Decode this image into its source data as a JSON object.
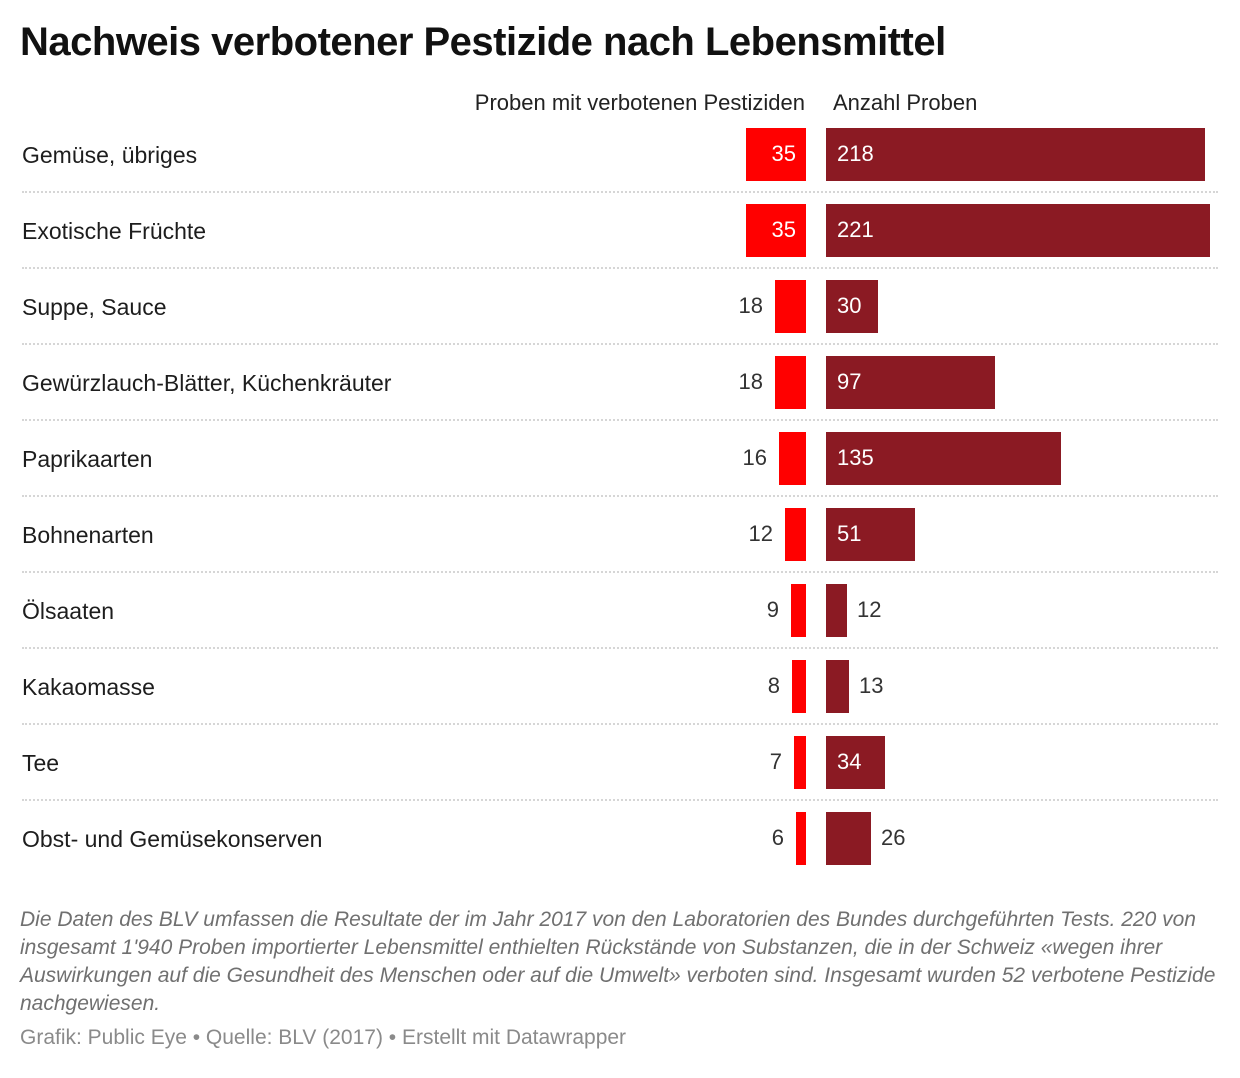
{
  "title": "Nachweis verbotener Pestizide nach Lebensmittel",
  "footnote": "Die Daten des BLV umfassen die Resultate der im Jahr 2017 von den Laboratorien des Bundes durchgeführten Tests. 220 von insgesamt 1'940 Proben importierter Lebensmittel enthielten Rückstände von Substanzen, die in der Schweiz «wegen ihrer Auswirkungen auf die Gesundheit des Menschen oder auf die Umwelt» verboten sind. Insgesamt wurden 52 verbotene Pestizide nachgewiesen.",
  "credits": "Grafik: Public Eye • Quelle: BLV (2017) • Erstellt mit Datawrapper",
  "colors": {
    "forbidden": "#ff0000",
    "samples": "#8b1a23"
  },
  "chart_data": {
    "type": "bar",
    "orientation": "horizontal",
    "title": "Nachweis verbotener Pestizide nach Lebensmittel",
    "categories": [
      "Gemüse, übriges",
      "Exotische Früchte",
      "Suppe, Sauce",
      "Gewürzlauch-Blätter, Küchenkräuter",
      "Paprikaarten",
      "Bohnenarten",
      "Ölsaaten",
      "Kakaomasse",
      "Tee",
      "Obst- und Gemüsekonserven"
    ],
    "series": [
      {
        "name": "Proben mit verbotenen Pestiziden",
        "values": [
          35,
          35,
          18,
          18,
          16,
          12,
          9,
          8,
          7,
          6
        ],
        "xlim": [
          0,
          35
        ]
      },
      {
        "name": "Anzahl Proben",
        "values": [
          218,
          221,
          30,
          97,
          135,
          51,
          12,
          13,
          34,
          26
        ],
        "xlim": [
          0,
          221
        ]
      }
    ],
    "grid": false,
    "legend": "column headers at top"
  }
}
